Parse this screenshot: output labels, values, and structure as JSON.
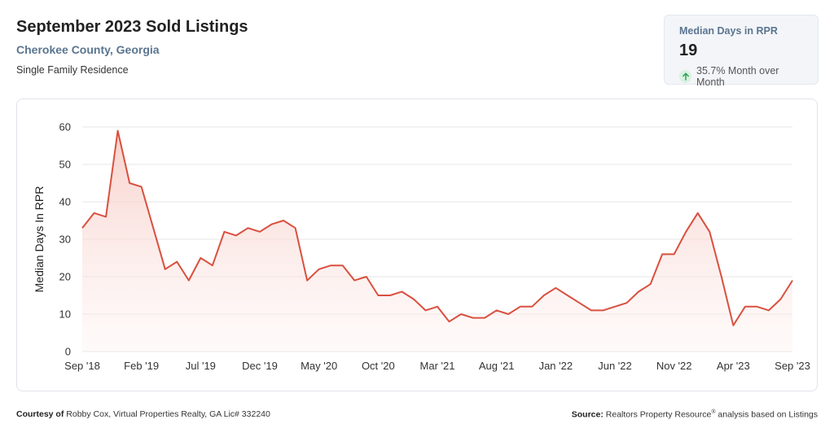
{
  "header": {
    "title": "September 2023 Sold Listings",
    "subtitle": "Cherokee County, Georgia",
    "property_type": "Single Family Residence"
  },
  "kpi": {
    "label": "Median Days in RPR",
    "value": "19",
    "change_text": "35.7% Month over Month",
    "arrow_icon": "arrow-up-icon",
    "change_color": "#2e9e56"
  },
  "colors": {
    "line": "#d9503f",
    "fill_top": "#f6c9c2",
    "fill_bottom": "#fdf1ef",
    "grid": "#e6e6e6"
  },
  "chart_data": {
    "type": "area",
    "title": "",
    "ylabel": "Median Days In RPR",
    "xlabel": "",
    "ylim": [
      0,
      60
    ],
    "yticks": [
      0,
      10,
      20,
      30,
      40,
      50,
      60
    ],
    "grid": true,
    "x_tick_labels": [
      "Sep '18",
      "Feb '19",
      "Jul '19",
      "Dec '19",
      "May '20",
      "Oct '20",
      "Mar '21",
      "Aug '21",
      "Jan '22",
      "Jun '22",
      "Nov '22",
      "Apr '23",
      "Sep '23"
    ],
    "x_start": "2018-09",
    "x_end": "2023-09",
    "series": [
      {
        "values": [
          33,
          37,
          36,
          59,
          45,
          44,
          33,
          22,
          24,
          19,
          25,
          23,
          32,
          31,
          33,
          32,
          34,
          35,
          33,
          19,
          22,
          23,
          23,
          19,
          20,
          15,
          15,
          16,
          14,
          11,
          12,
          8,
          10,
          9,
          9,
          11,
          10,
          12,
          12,
          15,
          17,
          15,
          13,
          11,
          11,
          12,
          13,
          16,
          18,
          26,
          26,
          32,
          37,
          32,
          20,
          7,
          12,
          12,
          11,
          14,
          19
        ]
      }
    ]
  },
  "footer": {
    "courtesy_label": "Courtesy of",
    "courtesy_text": "Robby Cox, Virtual Properties Realty, GA Lic# 332240",
    "source_label": "Source:",
    "source_text_a": "Realtors Property Resource",
    "source_reg": "®",
    "source_text_b": " analysis based on Listings"
  }
}
